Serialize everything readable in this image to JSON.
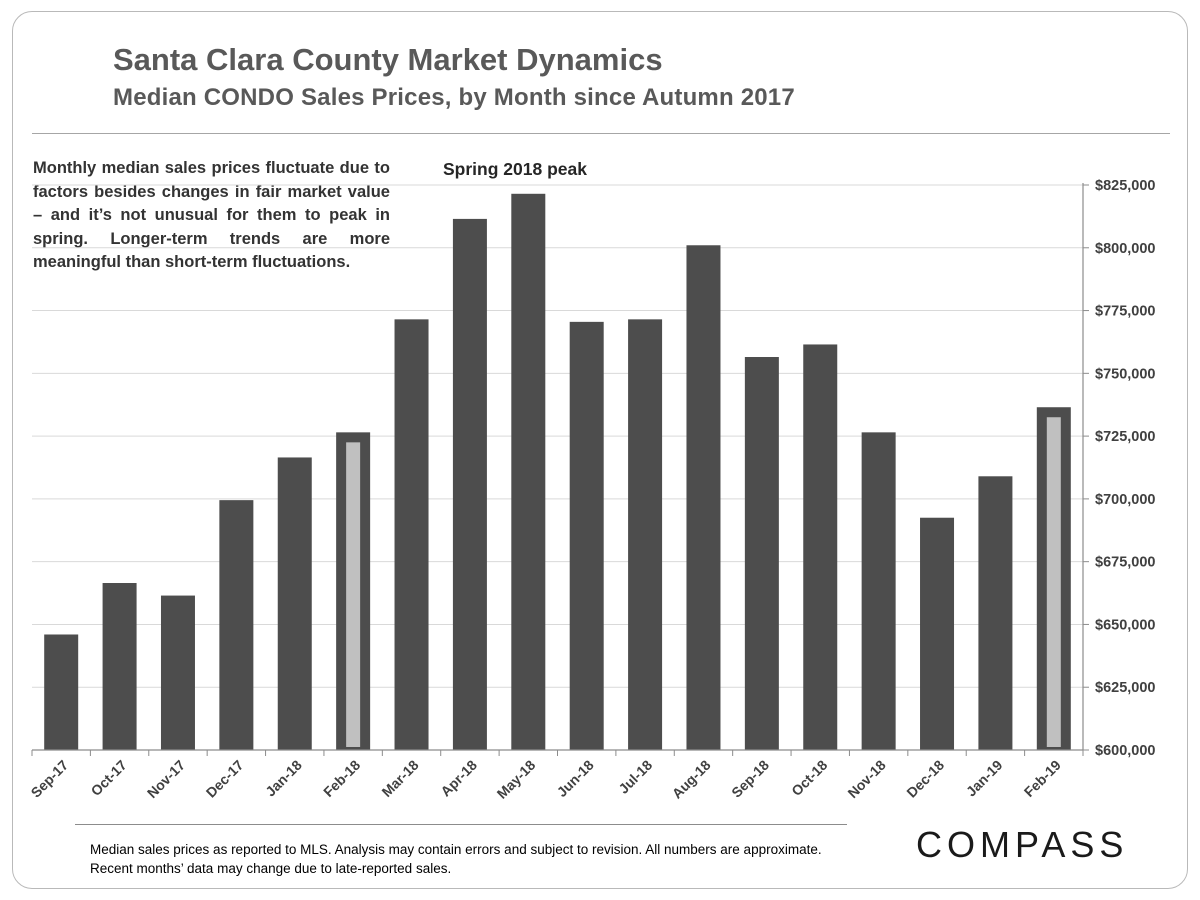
{
  "header": {
    "title": "Santa Clara County Market Dynamics",
    "subtitle": "Median CONDO Sales Prices, by Month since Autumn 2017"
  },
  "note": "Monthly median sales prices fluctuate due to factors besides changes in fair market value – and it’s not unusual for them to peak in spring. Longer-term trends are more meaningful than short-term fluctuations.",
  "annotation": "Spring 2018 peak",
  "footnote": "Median sales prices as reported to MLS.  Analysis may contain errors and subject to revision. All numbers are approximate. Recent months’ data may change due to late-reported sales.",
  "brand": "COMPASS",
  "colors": {
    "bar": "#4d4d4d",
    "highlight_inner": "#c0c0c0",
    "grid": "#d9d9d9",
    "axis": "#8c8c8c",
    "text": "#404040"
  },
  "chart_data": {
    "type": "bar",
    "categories": [
      "Sep-17",
      "Oct-17",
      "Nov-17",
      "Dec-17",
      "Jan-18",
      "Feb-18",
      "Mar-18",
      "Apr-18",
      "May-18",
      "Jun-18",
      "Jul-18",
      "Aug-18",
      "Sep-18",
      "Oct-18",
      "Nov-18",
      "Dec-18",
      "Jan-19",
      "Feb-19"
    ],
    "values": [
      646000,
      666500,
      661500,
      699500,
      716500,
      726500,
      771500,
      811500,
      821500,
      770500,
      771500,
      801000,
      756500,
      761500,
      726500,
      692500,
      709000,
      736500
    ],
    "highlighted": [
      "Feb-18",
      "Feb-19"
    ],
    "ylim": [
      600000,
      825000
    ],
    "yticks": [
      600000,
      625000,
      650000,
      675000,
      700000,
      725000,
      750000,
      775000,
      800000,
      825000
    ],
    "ytick_labels": [
      "$600,000",
      "$625,000",
      "$650,000",
      "$675,000",
      "$700,000",
      "$725,000",
      "$750,000",
      "$775,000",
      "$800,000",
      "$825,000"
    ],
    "yaxis_position": "right",
    "grid": true,
    "xlabel": "",
    "ylabel": ""
  }
}
